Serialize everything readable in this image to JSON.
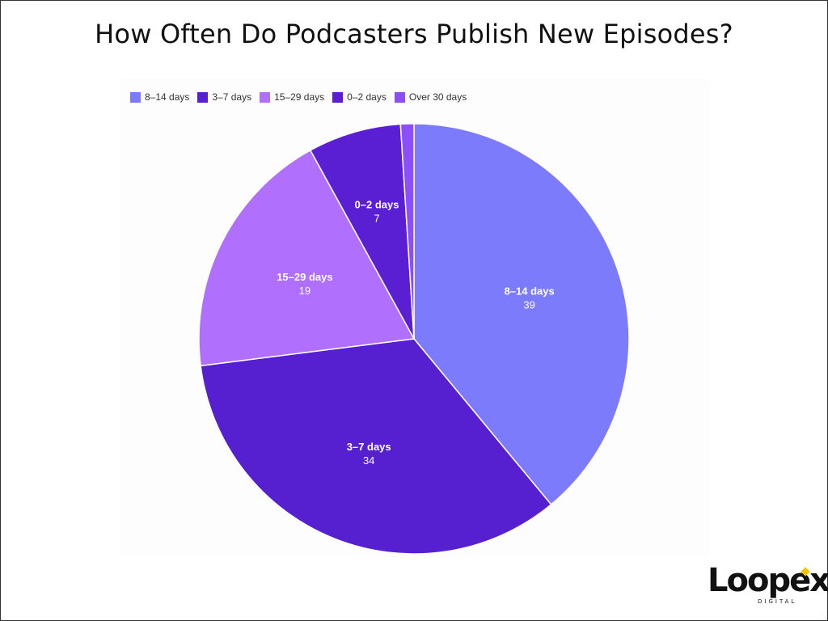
{
  "title": "How Often Do Podcasters Publish New Episodes?",
  "logo": {
    "word": "Loopex",
    "sub": "DIGITAL"
  },
  "chart_data": {
    "type": "pie",
    "title": "How Often Do Podcasters Publish New Episodes?",
    "legend_position": "top-left",
    "slices": [
      {
        "label": "8–14 days",
        "value": 39,
        "color": "#7b7bfc"
      },
      {
        "label": "3–7 days",
        "value": 34,
        "color": "#561fcf"
      },
      {
        "label": "15–29 days",
        "value": 19,
        "color": "#b06ffc"
      },
      {
        "label": "0–2 days",
        "value": 7,
        "color": "#5a1fd2"
      },
      {
        "label": "Over 30 days",
        "value": 1,
        "color": "#8c4efa"
      }
    ]
  }
}
